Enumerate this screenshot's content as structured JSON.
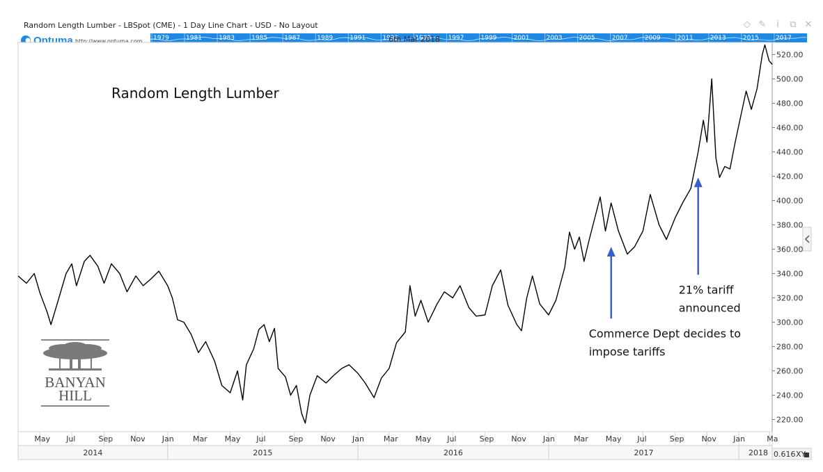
{
  "window": {
    "title": "Random Length Lumber - LBSpot (CME) - 1 Day Line Chart - USD - No Layout",
    "controls": [
      "diamond-icon",
      "pin-icon",
      "info-icon",
      "restore-icon",
      "close-icon"
    ]
  },
  "overview": {
    "brand": "Optuma",
    "url": "http://www.optuma.com",
    "years": [
      "1979",
      "1981",
      "1983",
      "1985",
      "1987",
      "1989",
      "1991",
      "1993",
      "1995",
      "1997",
      "1999",
      "2001",
      "2003",
      "2005",
      "2007",
      "2009",
      "2011",
      "2013",
      "2015",
      "2017"
    ],
    "date_label": "6th Mar 2018",
    "color": "#1e88e5"
  },
  "branding": {
    "line1": "BANYAN",
    "line2": "HILL"
  },
  "chart_data": {
    "type": "line",
    "title": "Random Length Lumber",
    "ylim": [
      210,
      530
    ],
    "yticks": [
      "220.00",
      "240.00",
      "260.00",
      "280.00",
      "300.00",
      "320.00",
      "340.00",
      "360.00",
      "380.00",
      "400.00",
      "420.00",
      "440.00",
      "460.00",
      "480.00",
      "500.00",
      "520.00"
    ],
    "xlim": [
      "2014-03-20",
      "2018-03-06"
    ],
    "month_ticks": [
      {
        "label": "May",
        "date": "2014-05-01"
      },
      {
        "label": "Jul",
        "date": "2014-07-01"
      },
      {
        "label": "Sep",
        "date": "2014-09-01"
      },
      {
        "label": "Nov",
        "date": "2014-11-01"
      },
      {
        "label": "Jan",
        "date": "2015-01-01"
      },
      {
        "label": "Mar",
        "date": "2015-03-01"
      },
      {
        "label": "May",
        "date": "2015-05-01"
      },
      {
        "label": "Jul",
        "date": "2015-07-01"
      },
      {
        "label": "Sep",
        "date": "2015-09-01"
      },
      {
        "label": "Nov",
        "date": "2015-11-01"
      },
      {
        "label": "Jan",
        "date": "2016-01-01"
      },
      {
        "label": "Mar",
        "date": "2016-03-01"
      },
      {
        "label": "May",
        "date": "2016-05-01"
      },
      {
        "label": "Jul",
        "date": "2016-07-01"
      },
      {
        "label": "Sep",
        "date": "2016-09-01"
      },
      {
        "label": "Nov",
        "date": "2016-11-01"
      },
      {
        "label": "Jan",
        "date": "2017-01-01"
      },
      {
        "label": "Mar",
        "date": "2017-03-01"
      },
      {
        "label": "May",
        "date": "2017-05-01"
      },
      {
        "label": "Jul",
        "date": "2017-07-01"
      },
      {
        "label": "Sep",
        "date": "2017-09-01"
      },
      {
        "label": "Nov",
        "date": "2017-11-01"
      },
      {
        "label": "Jan",
        "date": "2018-01-01"
      },
      {
        "label": "Ma",
        "date": "2018-03-01"
      }
    ],
    "year_bands": [
      {
        "label": "2014",
        "start": "2014-03-20",
        "end": "2015-01-01"
      },
      {
        "label": "2015",
        "start": "2015-01-01",
        "end": "2016-01-01"
      },
      {
        "label": "2016",
        "start": "2016-01-01",
        "end": "2017-01-01"
      },
      {
        "label": "2017",
        "start": "2017-01-01",
        "end": "2018-01-01"
      },
      {
        "label": "2018",
        "start": "2018-01-01",
        "end": "2018-03-06"
      }
    ],
    "xy_readout": "0.616",
    "xy_label": "XY",
    "series": [
      {
        "color": "#000000",
        "points": [
          [
            "2014-03-20",
            338
          ],
          [
            "2014-04-05",
            332
          ],
          [
            "2014-04-20",
            340
          ],
          [
            "2014-05-01",
            324
          ],
          [
            "2014-05-15",
            308
          ],
          [
            "2014-05-22",
            298
          ],
          [
            "2014-06-05",
            318
          ],
          [
            "2014-06-20",
            340
          ],
          [
            "2014-07-01",
            348
          ],
          [
            "2014-07-10",
            330
          ],
          [
            "2014-07-25",
            350
          ],
          [
            "2014-08-05",
            355
          ],
          [
            "2014-08-20",
            346
          ],
          [
            "2014-09-01",
            332
          ],
          [
            "2014-09-15",
            348
          ],
          [
            "2014-10-01",
            340
          ],
          [
            "2014-10-15",
            325
          ],
          [
            "2014-11-01",
            338
          ],
          [
            "2014-11-15",
            330
          ],
          [
            "2014-12-01",
            336
          ],
          [
            "2014-12-15",
            342
          ],
          [
            "2015-01-01",
            330
          ],
          [
            "2015-01-10",
            320
          ],
          [
            "2015-01-20",
            302
          ],
          [
            "2015-02-01",
            300
          ],
          [
            "2015-02-15",
            290
          ],
          [
            "2015-03-01",
            275
          ],
          [
            "2015-03-15",
            284
          ],
          [
            "2015-04-01",
            268
          ],
          [
            "2015-04-15",
            248
          ],
          [
            "2015-05-01",
            242
          ],
          [
            "2015-05-15",
            260
          ],
          [
            "2015-05-25",
            236
          ],
          [
            "2015-06-01",
            265
          ],
          [
            "2015-06-15",
            278
          ],
          [
            "2015-06-25",
            294
          ],
          [
            "2015-07-05",
            298
          ],
          [
            "2015-07-15",
            284
          ],
          [
            "2015-07-25",
            295
          ],
          [
            "2015-08-01",
            262
          ],
          [
            "2015-08-15",
            255
          ],
          [
            "2015-08-25",
            240
          ],
          [
            "2015-09-05",
            248
          ],
          [
            "2015-09-15",
            225
          ],
          [
            "2015-09-22",
            217
          ],
          [
            "2015-10-01",
            240
          ],
          [
            "2015-10-15",
            256
          ],
          [
            "2015-11-01",
            250
          ],
          [
            "2015-11-15",
            256
          ],
          [
            "2015-12-01",
            262
          ],
          [
            "2015-12-15",
            265
          ],
          [
            "2016-01-01",
            258
          ],
          [
            "2016-01-15",
            250
          ],
          [
            "2016-02-01",
            238
          ],
          [
            "2016-02-15",
            254
          ],
          [
            "2016-03-01",
            262
          ],
          [
            "2016-03-15",
            283
          ],
          [
            "2016-04-01",
            292
          ],
          [
            "2016-04-10",
            330
          ],
          [
            "2016-04-20",
            305
          ],
          [
            "2016-05-01",
            318
          ],
          [
            "2016-05-15",
            300
          ],
          [
            "2016-06-01",
            315
          ],
          [
            "2016-06-15",
            325
          ],
          [
            "2016-07-01",
            320
          ],
          [
            "2016-07-15",
            330
          ],
          [
            "2016-08-01",
            312
          ],
          [
            "2016-08-15",
            305
          ],
          [
            "2016-09-01",
            306
          ],
          [
            "2016-09-15",
            330
          ],
          [
            "2016-10-01",
            343
          ],
          [
            "2016-10-15",
            314
          ],
          [
            "2016-11-01",
            298
          ],
          [
            "2016-11-10",
            293
          ],
          [
            "2016-11-20",
            320
          ],
          [
            "2016-12-01",
            338
          ],
          [
            "2016-12-15",
            315
          ],
          [
            "2017-01-01",
            306
          ],
          [
            "2017-01-15",
            318
          ],
          [
            "2017-02-01",
            345
          ],
          [
            "2017-02-10",
            374
          ],
          [
            "2017-02-20",
            360
          ],
          [
            "2017-03-01",
            370
          ],
          [
            "2017-03-10",
            350
          ],
          [
            "2017-03-20",
            368
          ],
          [
            "2017-04-01",
            388
          ],
          [
            "2017-04-10",
            403
          ],
          [
            "2017-04-20",
            375
          ],
          [
            "2017-05-01",
            398
          ],
          [
            "2017-05-15",
            375
          ],
          [
            "2017-06-01",
            356
          ],
          [
            "2017-06-15",
            362
          ],
          [
            "2017-07-01",
            375
          ],
          [
            "2017-07-15",
            405
          ],
          [
            "2017-08-01",
            380
          ],
          [
            "2017-08-15",
            368
          ],
          [
            "2017-09-01",
            386
          ],
          [
            "2017-09-15",
            398
          ],
          [
            "2017-10-01",
            410
          ],
          [
            "2017-10-15",
            440
          ],
          [
            "2017-10-25",
            466
          ],
          [
            "2017-11-01",
            448
          ],
          [
            "2017-11-10",
            500
          ],
          [
            "2017-11-18",
            435
          ],
          [
            "2017-11-25",
            419
          ],
          [
            "2017-12-05",
            428
          ],
          [
            "2017-12-15",
            426
          ],
          [
            "2017-12-25",
            448
          ],
          [
            "2018-01-05",
            470
          ],
          [
            "2018-01-15",
            490
          ],
          [
            "2018-01-25",
            475
          ],
          [
            "2018-02-05",
            492
          ],
          [
            "2018-02-15",
            520
          ],
          [
            "2018-02-20",
            528
          ],
          [
            "2018-02-28",
            515
          ],
          [
            "2018-03-06",
            512
          ]
        ]
      }
    ],
    "annotations": [
      {
        "lines": [
          "Commerce Dept decides to",
          "impose tariffs"
        ],
        "arrow_date": "2017-05-01",
        "arrow_value": 362,
        "arrow_tail_value": 303,
        "color": "#3a5fcd"
      },
      {
        "lines": [
          "21% tariff",
          "announced"
        ],
        "arrow_date": "2017-10-15",
        "arrow_value": 419,
        "arrow_tail_value": 339,
        "color": "#3a5fcd"
      }
    ]
  }
}
